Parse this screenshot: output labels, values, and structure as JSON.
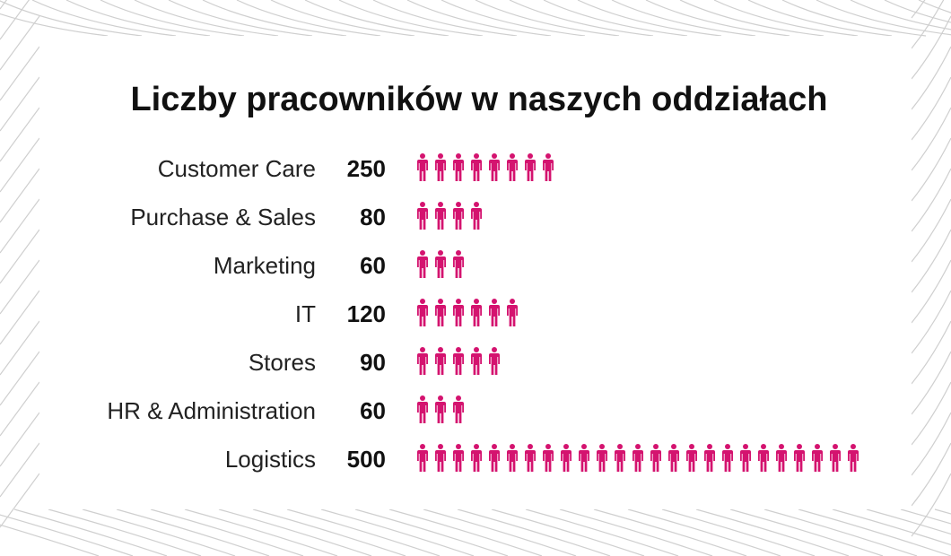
{
  "chart_data": {
    "type": "pictograph",
    "title": "Liczby pracowników w naszych oddziałach",
    "categories": [
      "Customer Care",
      "Purchase & Sales",
      "Marketing",
      "IT",
      "Stores",
      "HR & Administration",
      "Logistics"
    ],
    "values": [
      250,
      80,
      60,
      120,
      90,
      60,
      500
    ],
    "icons": [
      8,
      4,
      3,
      6,
      5,
      3,
      25
    ],
    "icon": "person-icon",
    "icon_color": "#d4136f"
  },
  "colors": {
    "line": "#cfcfcf",
    "text": "#222222"
  }
}
